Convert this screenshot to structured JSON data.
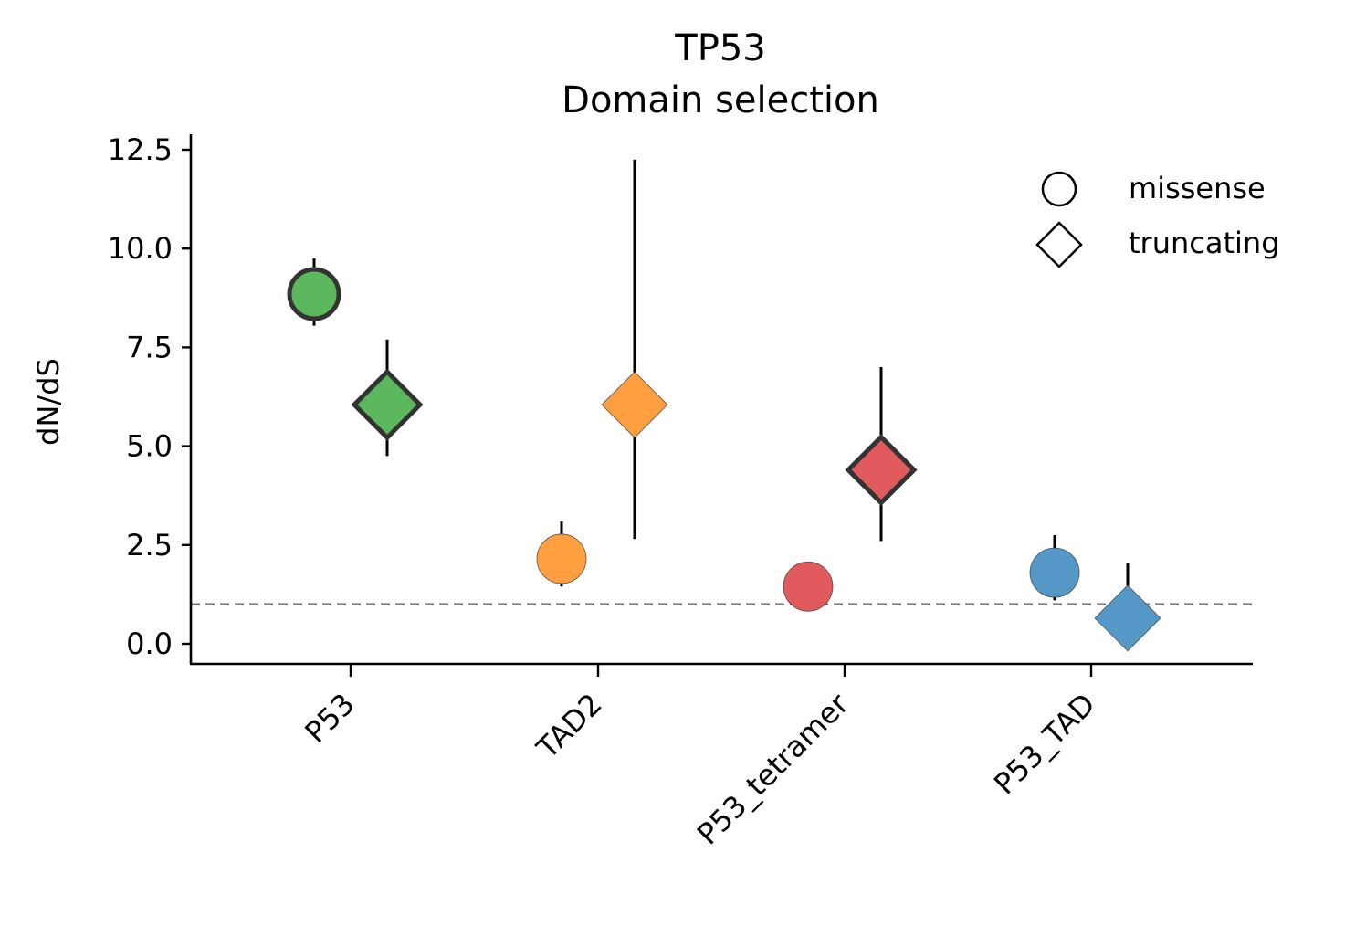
{
  "chart_data": {
    "type": "scatter",
    "title": "TP53",
    "subtitle": "Domain selection",
    "ylabel": "dN/dS",
    "xlabel": "",
    "ylim": [
      -0.5,
      12.9
    ],
    "yticks": [
      0.0,
      2.5,
      5.0,
      7.5,
      10.0,
      12.5
    ],
    "ytick_labels": [
      "0.0",
      "2.5",
      "5.0",
      "7.5",
      "10.0",
      "12.5"
    ],
    "categories": [
      "P53",
      "TAD2",
      "P53_tetramer",
      "P53_TAD"
    ],
    "reference_line": {
      "y": 1.0,
      "style": "dashed",
      "color": "#808080"
    },
    "grid": false,
    "legend_position": "top-right",
    "legend": [
      {
        "label": "missense",
        "marker": "circle"
      },
      {
        "label": "truncating",
        "marker": "diamond"
      }
    ],
    "series": [
      {
        "name": "missense",
        "marker": "circle",
        "points": [
          {
            "category": "P53",
            "value": 8.85,
            "ci_low": 8.05,
            "ci_high": 9.75,
            "color": "#5cb85c",
            "emphasized": true
          },
          {
            "category": "TAD2",
            "value": 2.15,
            "ci_low": 1.45,
            "ci_high": 3.1,
            "color": "#ff9f40",
            "emphasized": false
          },
          {
            "category": "P53_tetramer",
            "value": 1.45,
            "ci_low": null,
            "ci_high": null,
            "color": "#e05a5e",
            "emphasized": false
          },
          {
            "category": "P53_TAD",
            "value": 1.8,
            "ci_low": 1.1,
            "ci_high": 2.75,
            "color": "#5598c8",
            "emphasized": false
          }
        ]
      },
      {
        "name": "truncating",
        "marker": "diamond",
        "points": [
          {
            "category": "P53",
            "value": 6.05,
            "ci_low": 4.75,
            "ci_high": 7.7,
            "color": "#5cb85c",
            "emphasized": true
          },
          {
            "category": "TAD2",
            "value": 6.05,
            "ci_low": 2.65,
            "ci_high": 12.25,
            "color": "#ff9f40",
            "emphasized": false
          },
          {
            "category": "P53_tetramer",
            "value": 4.4,
            "ci_low": 2.6,
            "ci_high": 7.0,
            "color": "#e05a5e",
            "emphasized": true
          },
          {
            "category": "P53_TAD",
            "value": 0.65,
            "ci_low": 0.25,
            "ci_high": 2.05,
            "color": "#5598c8",
            "emphasized": false
          }
        ]
      }
    ]
  }
}
